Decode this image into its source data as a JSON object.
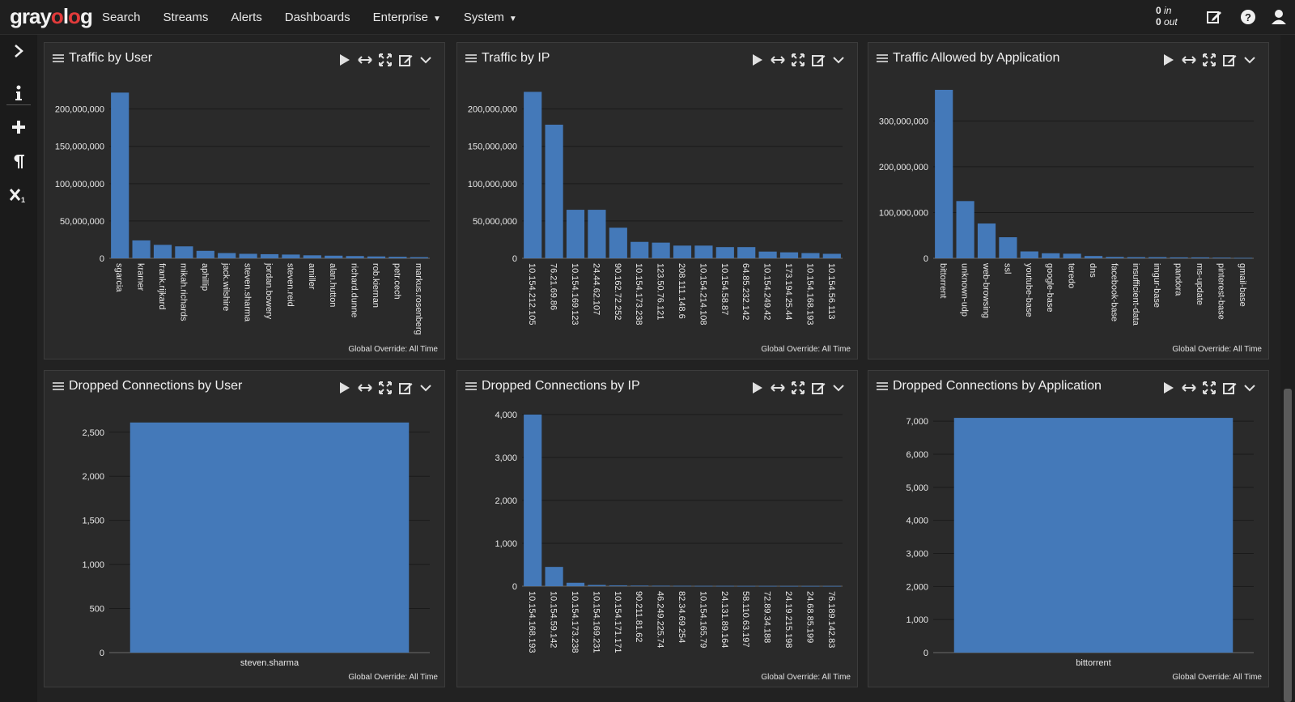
{
  "app": {
    "logo_prefix": "gray",
    "logo_o": "o",
    "logo_l": "l",
    "logo_suffix": "g"
  },
  "nav": {
    "items": [
      {
        "label": "Search"
      },
      {
        "label": "Streams"
      },
      {
        "label": "Alerts"
      },
      {
        "label": "Dashboards"
      },
      {
        "label": "Enterprise",
        "dropdown": true
      },
      {
        "label": "System",
        "dropdown": true
      }
    ]
  },
  "throughput": {
    "in_value": "0",
    "in_label": "in",
    "out_value": "0",
    "out_label": "out"
  },
  "top_icons": [
    "edit-icon",
    "help-icon",
    "user-icon"
  ],
  "sidebar_icons": [
    "chevron-right-icon",
    "info-icon",
    "plus-icon",
    "paragraph-icon",
    "subscript-icon"
  ],
  "colors": {
    "bar": "#4479b9",
    "background": "#222222",
    "widget": "#2a2a2a"
  },
  "widgets": [
    {
      "title": "Traffic by User",
      "override": "Global Override: All Time",
      "chart_data": {
        "type": "bar",
        "categories": [
          "sgarcia",
          "kramer",
          "frank.rijkard",
          "mikah.richards",
          "aphillip",
          "jack.wilshire",
          "steven.sharma",
          "jordan.bowery",
          "steven.reid",
          "amiller",
          "alan.hutton",
          "richard.dunne",
          "rob.kiernan",
          "petr.cech",
          "markus.rosenberg"
        ],
        "values": [
          222000000,
          24000000,
          18000000,
          16000000,
          10000000,
          7000000,
          6000000,
          5500000,
          5000000,
          4000000,
          3500000,
          3000000,
          2500000,
          2000000,
          1500000
        ],
        "yticks": [
          0,
          50000000,
          100000000,
          150000000,
          200000000
        ],
        "ytick_labels": [
          "0",
          "50,000,000",
          "100,000,000",
          "150,000,000",
          "200,000,000"
        ],
        "ylim": [
          0,
          230000000
        ],
        "label_rotation": "vertical"
      }
    },
    {
      "title": "Traffic by IP",
      "override": "Global Override: All Time",
      "chart_data": {
        "type": "bar",
        "categories": [
          "10.154.212.105",
          "76.21.69.86",
          "10.154.169.123",
          "24.44.62.107",
          "90.162.72.252",
          "10.154.173.238",
          "123.50.76.121",
          "208.111.148.6",
          "10.154.214.108",
          "10.154.58.87",
          "64.85.232.142",
          "10.154.249.42",
          "173.194.25.44",
          "10.154.168.193",
          "10.154.56.113"
        ],
        "values": [
          223000000,
          179000000,
          65000000,
          65000000,
          41000000,
          22000000,
          21000000,
          17000000,
          17000000,
          15000000,
          15000000,
          9000000,
          8000000,
          7000000,
          6000000
        ],
        "yticks": [
          0,
          50000000,
          100000000,
          150000000,
          200000000
        ],
        "ytick_labels": [
          "0",
          "50,000,000",
          "100,000,000",
          "150,000,000",
          "200,000,000"
        ],
        "ylim": [
          0,
          230000000
        ],
        "label_rotation": "vertical"
      }
    },
    {
      "title": "Traffic Allowed by Application",
      "override": "Global Override: All Time",
      "chart_data": {
        "type": "bar",
        "categories": [
          "bittorrent",
          "unknown-udp",
          "web-browsing",
          "ssl",
          "youtube-base",
          "google-base",
          "teredo",
          "dns",
          "facebook-base",
          "insufficient-data",
          "imgur-base",
          "pandora",
          "ms-update",
          "pinterest-base",
          "gmail-base"
        ],
        "values": [
          368000000,
          125000000,
          76000000,
          46000000,
          15000000,
          11000000,
          10000000,
          5000000,
          3000000,
          2500000,
          2500000,
          2000000,
          2000000,
          1500000,
          1000000
        ],
        "yticks": [
          0,
          100000000,
          200000000,
          300000000
        ],
        "ytick_labels": [
          "0",
          "100,000,000",
          "200,000,000",
          "300,000,000"
        ],
        "ylim": [
          0,
          375000000
        ],
        "label_rotation": "vertical"
      }
    },
    {
      "title": "Dropped Connections by User",
      "override": "Global Override: All Time",
      "chart_data": {
        "type": "bar",
        "categories": [
          "steven.sharma"
        ],
        "values": [
          2610
        ],
        "yticks": [
          0,
          500,
          1000,
          1500,
          2000,
          2500
        ],
        "ytick_labels": [
          "0",
          "500",
          "1,000",
          "1,500",
          "2,000",
          "2,500"
        ],
        "ylim": [
          0,
          2700
        ],
        "label_rotation": "horizontal"
      }
    },
    {
      "title": "Dropped Connections by IP",
      "override": "Global Override: All Time",
      "chart_data": {
        "type": "bar",
        "categories": [
          "10.154.168.193",
          "10.154.59.142",
          "10.154.173.238",
          "10.154.169.231",
          "10.154.171.171",
          "90.211.81.62",
          "46.249.225.74",
          "82.34.69.254",
          "10.154.165.79",
          "24.131.89.164",
          "58.110.63.197",
          "72.89.34.188",
          "24.19.215.198",
          "24.68.85.199",
          "76.189.142.83"
        ],
        "values": [
          4000,
          450,
          80,
          30,
          20,
          15,
          12,
          10,
          8,
          8,
          6,
          6,
          5,
          5,
          5
        ],
        "yticks": [
          0,
          1000,
          2000,
          3000,
          4000
        ],
        "ytick_labels": [
          "0",
          "1,000",
          "2,000",
          "3,000",
          "4,000"
        ],
        "ylim": [
          0,
          4000
        ],
        "label_rotation": "vertical"
      }
    },
    {
      "title": "Dropped Connections by Application",
      "override": "Global Override: All Time",
      "chart_data": {
        "type": "bar",
        "categories": [
          "bittorrent"
        ],
        "values": [
          7100
        ],
        "yticks": [
          0,
          1000,
          2000,
          3000,
          4000,
          5000,
          6000,
          7000
        ],
        "ytick_labels": [
          "0",
          "1,000",
          "2,000",
          "3,000",
          "4,000",
          "5,000",
          "6,000",
          "7,000"
        ],
        "ylim": [
          0,
          7200
        ],
        "label_rotation": "horizontal"
      }
    }
  ]
}
